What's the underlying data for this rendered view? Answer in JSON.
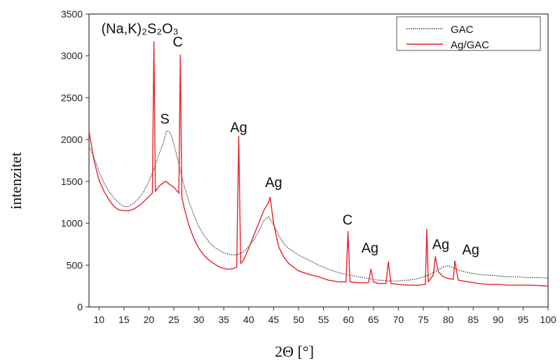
{
  "chart_data": {
    "type": "line",
    "title": "",
    "xlabel": "2Θ [°]",
    "ylabel": "intenzitet",
    "xlim": [
      8,
      100
    ],
    "ylim": [
      0,
      3500
    ],
    "xticks": [
      10,
      15,
      20,
      25,
      30,
      35,
      40,
      45,
      50,
      55,
      60,
      65,
      70,
      75,
      80,
      85,
      90,
      95,
      100
    ],
    "yticks": [
      0,
      500,
      1000,
      1500,
      2000,
      2500,
      3000,
      3500
    ],
    "legend_position": "top-right",
    "grid": false,
    "series": [
      {
        "name": "GAC",
        "color": "#444444",
        "style": "dotted",
        "x": [
          8,
          9,
          10,
          11,
          12,
          13,
          14,
          15,
          16,
          17,
          18,
          19,
          20,
          21,
          22,
          23,
          23.5,
          24,
          24.5,
          25,
          25.5,
          26,
          27,
          28,
          29,
          30,
          31,
          32,
          33,
          34,
          35,
          36,
          37,
          38,
          39,
          40,
          41,
          42,
          43,
          44,
          45,
          46,
          47,
          48,
          50,
          52,
          54,
          56,
          58,
          60,
          62,
          64,
          66,
          68,
          70,
          72,
          74,
          76,
          78,
          79,
          80,
          81,
          82,
          84,
          86,
          88,
          90,
          92,
          94,
          96,
          98,
          100
        ],
        "y": [
          1920,
          1790,
          1620,
          1480,
          1380,
          1300,
          1240,
          1200,
          1200,
          1240,
          1300,
          1380,
          1500,
          1650,
          1820,
          1980,
          2100,
          2100,
          2050,
          1950,
          1830,
          1700,
          1460,
          1260,
          1100,
          960,
          860,
          780,
          720,
          680,
          650,
          630,
          620,
          630,
          660,
          720,
          800,
          900,
          1030,
          1080,
          980,
          860,
          760,
          700,
          620,
          560,
          500,
          450,
          410,
          380,
          360,
          340,
          320,
          310,
          310,
          320,
          340,
          380,
          440,
          480,
          490,
          470,
          440,
          410,
          390,
          380,
          370,
          360,
          360,
          350,
          350,
          345
        ]
      },
      {
        "name": "Ag/GAC",
        "color": "#e8222a",
        "style": "solid",
        "x": [
          8,
          9,
          10,
          11,
          12,
          13,
          14,
          15,
          16,
          17,
          18,
          19,
          20,
          20.7,
          21,
          21.3,
          22,
          23,
          23.5,
          24,
          25,
          26,
          26.3,
          26.6,
          27,
          28,
          29,
          30,
          31,
          32,
          33,
          34,
          35,
          36,
          37,
          37.6,
          38,
          38.4,
          39,
          40,
          41,
          42,
          43,
          44,
          44.3,
          45,
          46,
          47,
          48,
          50,
          52,
          54,
          56,
          58,
          59.5,
          59.9,
          60.3,
          62,
          64,
          64.5,
          65,
          66,
          67.5,
          68,
          68.5,
          70,
          72,
          74,
          75.4,
          75.7,
          76,
          77,
          77.4,
          78,
          79,
          80,
          81,
          81.3,
          82,
          84,
          86,
          88,
          90,
          92,
          94,
          96,
          98,
          100
        ],
        "y": [
          2100,
          1750,
          1520,
          1380,
          1280,
          1200,
          1160,
          1150,
          1150,
          1170,
          1210,
          1260,
          1320,
          1360,
          3170,
          1380,
          1440,
          1490,
          1500,
          1470,
          1430,
          1360,
          3010,
          1320,
          1200,
          980,
          820,
          700,
          620,
          560,
          520,
          480,
          460,
          450,
          460,
          480,
          2040,
          520,
          560,
          700,
          850,
          1000,
          1150,
          1250,
          1310,
          1000,
          720,
          600,
          520,
          430,
          390,
          360,
          320,
          300,
          300,
          900,
          300,
          290,
          290,
          450,
          300,
          280,
          280,
          540,
          280,
          270,
          260,
          260,
          270,
          930,
          300,
          380,
          600,
          420,
          360,
          340,
          330,
          550,
          320,
          300,
          280,
          270,
          270,
          260,
          260,
          260,
          255,
          250
        ]
      }
    ],
    "annotations": [
      {
        "text": "(Na,K)₂S₂O₃",
        "x": 18.2,
        "y": 3270
      },
      {
        "text": "C",
        "x": 25.8,
        "y": 3110
      },
      {
        "text": "S",
        "x": 23.2,
        "y": 2190
      },
      {
        "text": "Ag",
        "x": 38,
        "y": 2090
      },
      {
        "text": "Ag",
        "x": 45,
        "y": 1430
      },
      {
        "text": "C",
        "x": 59.8,
        "y": 985
      },
      {
        "text": "Ag",
        "x": 64.3,
        "y": 650
      },
      {
        "text": "Ag",
        "x": 78.5,
        "y": 690
      },
      {
        "text": "Ag",
        "x": 84.5,
        "y": 630
      }
    ]
  }
}
